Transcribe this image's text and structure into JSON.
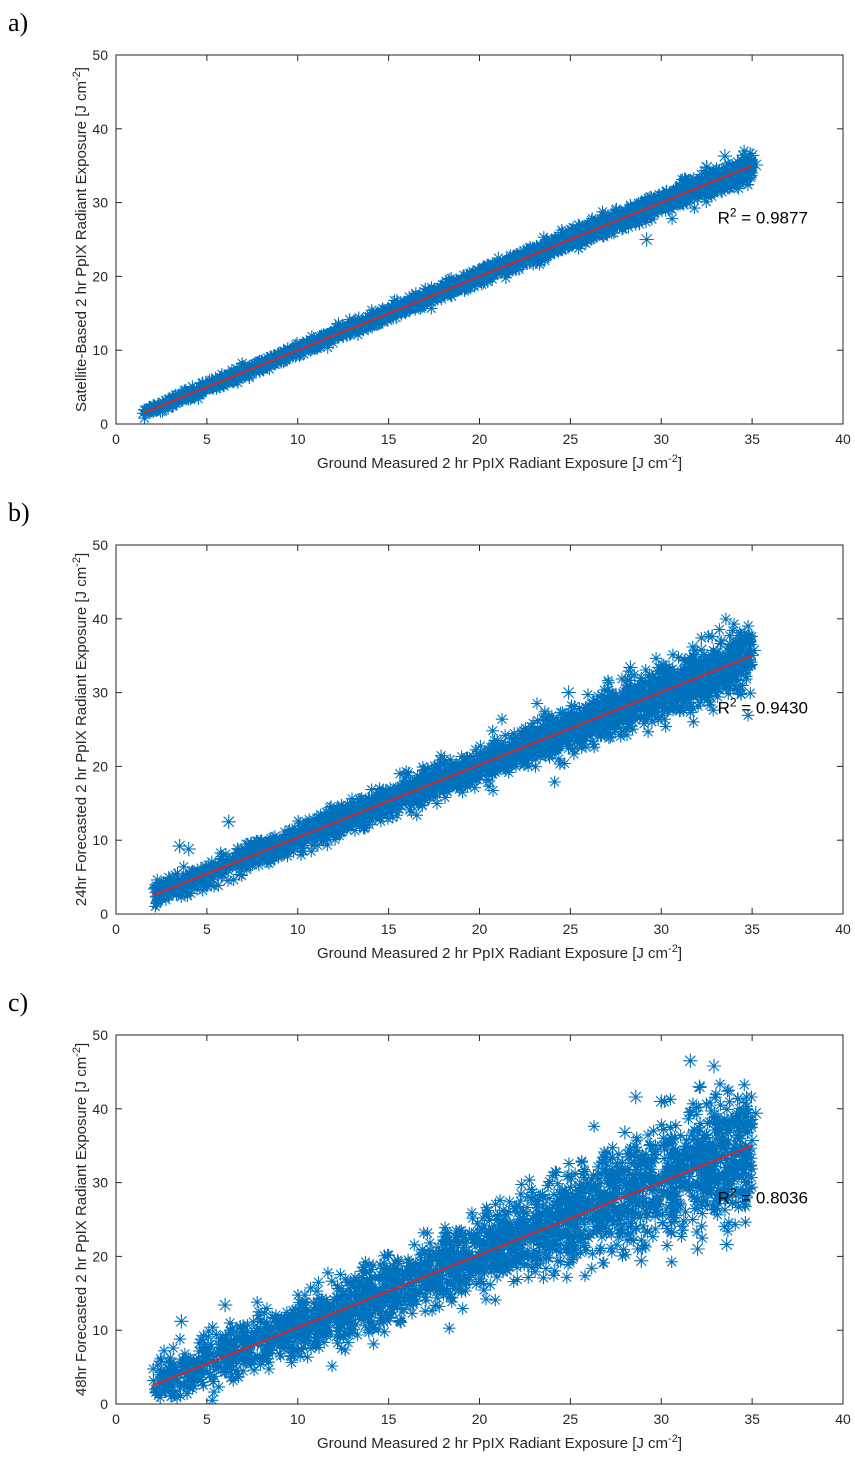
{
  "panels": [
    {
      "label": "a)",
      "ylabel": "Satellite-Based 2 hr PpIX Radiant Exposure [J cm",
      "r2_text": "= 0.9877"
    },
    {
      "label": "b)",
      "ylabel": "24hr Forecasted 2 hr PpIX Radiant Exposure [J cm",
      "r2_text": "= 0.9430"
    },
    {
      "label": "c)",
      "ylabel": "48hr Forecasted 2 hr PpIX Radiant Exposure [J cm",
      "r2_text": "= 0.8036"
    }
  ],
  "common": {
    "xlabel": "Ground Measured 2 hr PpIX Radiant Exposure [J cm",
    "unit_exponent": "-2",
    "unit_close": "]",
    "r2_prefix": "R",
    "r2_exponent": "2"
  },
  "colors": {
    "scatter": "#0072BD",
    "fit_line": "#D62728",
    "axis": "#262626"
  },
  "chart_data": [
    {
      "type": "scatter",
      "xlabel": "Ground Measured 2 hr PpIX Radiant Exposure [J cm-2]",
      "ylabel": "Satellite-Based 2 hr PpIX Radiant Exposure [J cm-2]",
      "xlim": [
        0,
        40
      ],
      "ylim": [
        0,
        50
      ],
      "xticks": [
        0,
        5,
        10,
        15,
        20,
        25,
        30,
        35,
        40
      ],
      "yticks": [
        0,
        10,
        20,
        30,
        40,
        50
      ],
      "marker": "asterisk",
      "x_range": [
        1.5,
        35
      ],
      "fit_line": {
        "x": [
          1.5,
          35
        ],
        "y": [
          1.5,
          35
        ]
      },
      "r_squared": 0.9877,
      "spread": 0.6,
      "outliers": [
        [
          33.5,
          36.3
        ],
        [
          35,
          36.4
        ],
        [
          35.2,
          35.1
        ],
        [
          29.2,
          25.0
        ],
        [
          32.5,
          34.8
        ],
        [
          34.2,
          34.5
        ]
      ],
      "grid": false
    },
    {
      "type": "scatter",
      "xlabel": "Ground Measured 2 hr PpIX Radiant Exposure [J cm-2]",
      "ylabel": "24hr Forecasted 2 hr PpIX Radiant Exposure [J cm-2]",
      "xlim": [
        0,
        40
      ],
      "ylim": [
        0,
        50
      ],
      "xticks": [
        0,
        5,
        10,
        15,
        20,
        25,
        30,
        35,
        40
      ],
      "yticks": [
        0,
        10,
        20,
        30,
        40,
        50
      ],
      "marker": "asterisk",
      "x_range": [
        2,
        35
      ],
      "fit_line": {
        "x": [
          2,
          35
        ],
        "y": [
          2.5,
          35
        ]
      },
      "r_squared": 0.943,
      "spread": 1.4,
      "outliers": [
        [
          32.8,
          37.6
        ],
        [
          33.8,
          36.5
        ],
        [
          35.1,
          35.7
        ],
        [
          32.2,
          35.8
        ],
        [
          3.5,
          9.2
        ],
        [
          6.2,
          12.5
        ],
        [
          28.3,
          33.4
        ],
        [
          33.8,
          30.6
        ],
        [
          24.9,
          30.0
        ],
        [
          4.0,
          8.8
        ]
      ],
      "grid": false
    },
    {
      "type": "scatter",
      "xlabel": "Ground Measured 2 hr PpIX Radiant Exposure [J cm-2]",
      "ylabel": "48hr Forecasted 2 hr PpIX Radiant Exposure [J cm-2]",
      "xlim": [
        0,
        40
      ],
      "ylim": [
        0,
        50
      ],
      "xticks": [
        0,
        5,
        10,
        15,
        20,
        25,
        30,
        35,
        40
      ],
      "yticks": [
        0,
        10,
        20,
        30,
        40,
        50
      ],
      "marker": "asterisk",
      "x_range": [
        2,
        35
      ],
      "fit_line": {
        "x": [
          2,
          35
        ],
        "y": [
          2.5,
          35
        ]
      },
      "r_squared": 0.8036,
      "spread": 2.9,
      "outliers": [
        [
          31.6,
          46.5
        ],
        [
          32.9,
          45.8
        ],
        [
          35.2,
          39.4
        ],
        [
          32.1,
          43.0
        ],
        [
          28.6,
          41.6
        ],
        [
          30.0,
          41.0
        ],
        [
          33.6,
          21.6
        ],
        [
          33.9,
          29.8
        ],
        [
          35.0,
          35.7
        ],
        [
          28.9,
          19.4
        ],
        [
          33.5,
          26.3
        ],
        [
          33.1,
          30.4
        ],
        [
          32.0,
          21.0
        ],
        [
          28.0,
          36.8
        ],
        [
          3.6,
          11.2
        ],
        [
          6.0,
          13.4
        ]
      ],
      "grid": false
    }
  ]
}
